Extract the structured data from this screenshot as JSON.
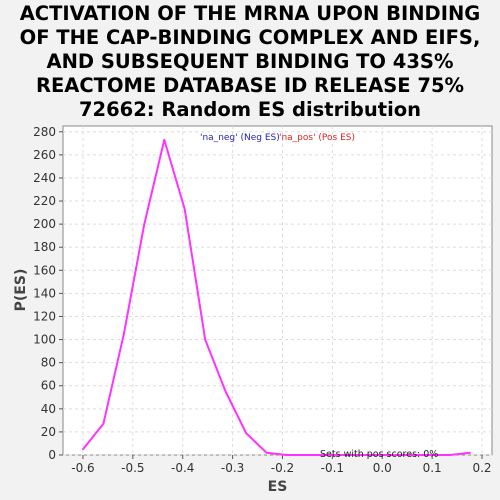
{
  "chart_data": {
    "type": "line",
    "title": "ACTIVATION OF THE MRNA UPON BINDING\nOF THE CAP-BINDING COMPLEX AND EIFS,\nAND SUBSEQUENT BINDING TO 43S%\nREACTOME DATABASE ID RELEASE 75%\n72662: Random ES distribution",
    "xlabel": "ES",
    "ylabel": "P(ES)",
    "xlim": [
      -0.64,
      0.22
    ],
    "ylim": [
      0,
      285
    ],
    "xticks": [
      "-0.6",
      "-0.5",
      "-0.4",
      "-0.3",
      "-0.2",
      "-0.1",
      "0.0",
      "0.1",
      "0.2"
    ],
    "yticks": [
      "0",
      "20",
      "40",
      "60",
      "80",
      "100",
      "120",
      "140",
      "160",
      "180",
      "200",
      "220",
      "240",
      "260",
      "280"
    ],
    "grid": true,
    "legend": [
      {
        "label": "'na_neg' (Neg ES)",
        "color": "#2222bb"
      },
      {
        "label": "'na_pos' (Pos ES)",
        "color": "#dd2222"
      }
    ],
    "annotation": "Sets with pos scores: 0%",
    "series": [
      {
        "color": "#ff33ff",
        "x": [
          -0.6,
          -0.559,
          -0.518,
          -0.477,
          -0.437,
          -0.396,
          -0.355,
          -0.314,
          -0.273,
          -0.232,
          -0.192,
          -0.151,
          -0.11,
          -0.069,
          -0.028,
          0.013,
          0.054,
          0.095,
          0.136,
          0.176
        ],
        "y": [
          5,
          27,
          105,
          200,
          273,
          213,
          100,
          55,
          19,
          2,
          0,
          0,
          0,
          0,
          0,
          0,
          0,
          0,
          0,
          2
        ]
      }
    ]
  }
}
